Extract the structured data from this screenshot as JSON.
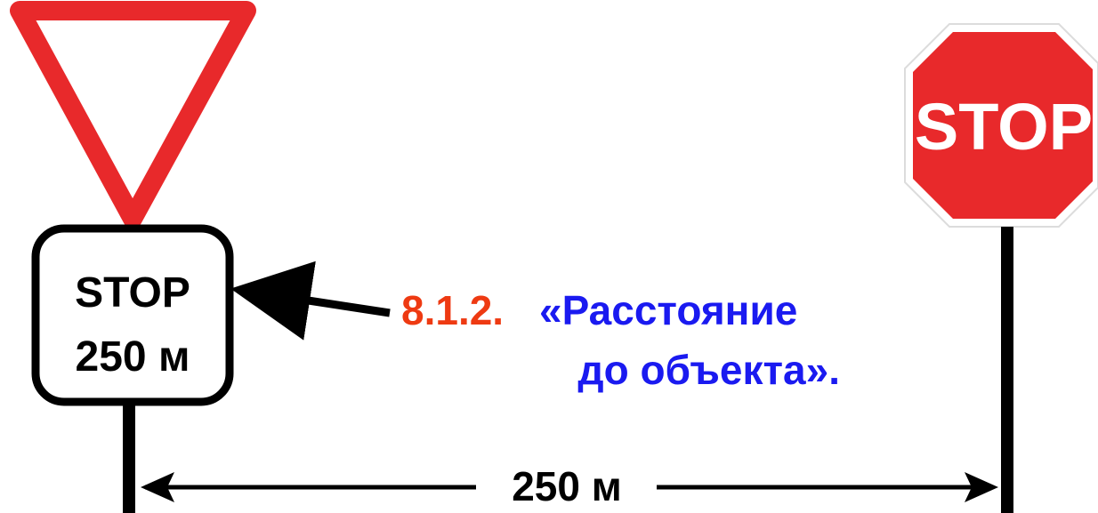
{
  "colors": {
    "sign_red": "#e8292b",
    "code_red": "#ee3a12",
    "caption_blue": "#1a1af0",
    "black": "#000000",
    "white": "#ffffff"
  },
  "plate": {
    "line1": "STOP",
    "line2": "250 м"
  },
  "stop_sign": {
    "text": "STOP"
  },
  "caption": {
    "code": "8.1.2.",
    "line1": "«Расстояние",
    "line2": "до объекта»."
  },
  "distance": {
    "label": "250 м"
  }
}
